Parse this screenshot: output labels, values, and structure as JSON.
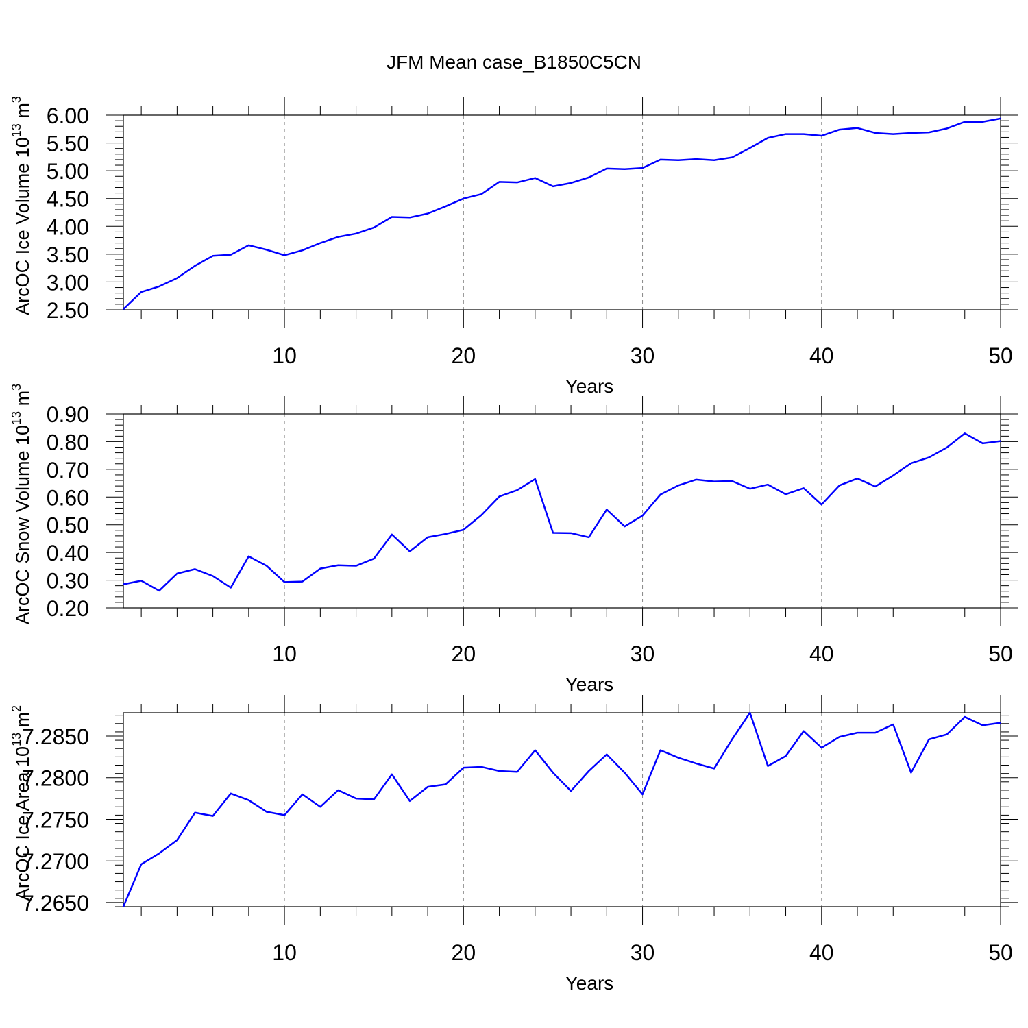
{
  "figure": {
    "title": "JFM Mean case_B1850C5CN"
  },
  "chart_data": [
    {
      "type": "line",
      "xlabel": "Years",
      "ylabel": "ArcOC Ice Volume 10",
      "ylabel_exponent": "13",
      "ylabel_unit": " m",
      "ylabel_unit_exponent": "3",
      "xlim": [
        1,
        50
      ],
      "ylim": [
        2.5,
        6.0
      ],
      "xticks": [
        10,
        20,
        30,
        40,
        50
      ],
      "yticks": [
        "2.50",
        "3.00",
        "3.50",
        "4.00",
        "4.50",
        "5.00",
        "5.50",
        "6.00"
      ],
      "x_grid": [
        10,
        20,
        30,
        40
      ],
      "series": [
        {
          "name": "ArcOC Ice Volume",
          "color": "#0000ff",
          "x": [
            1,
            2,
            3,
            4,
            5,
            6,
            7,
            8,
            9,
            10,
            11,
            12,
            13,
            14,
            15,
            16,
            17,
            18,
            19,
            20,
            21,
            22,
            23,
            24,
            25,
            26,
            27,
            28,
            29,
            30,
            31,
            32,
            33,
            34,
            35,
            36,
            37,
            38,
            39,
            40,
            41,
            42,
            43,
            44,
            45,
            46,
            47,
            48,
            49,
            50
          ],
          "values": [
            2.51,
            2.82,
            2.92,
            3.07,
            3.29,
            3.47,
            3.49,
            3.66,
            3.58,
            3.48,
            3.57,
            3.7,
            3.81,
            3.87,
            3.98,
            4.17,
            4.16,
            4.23,
            4.36,
            4.5,
            4.58,
            4.8,
            4.79,
            4.87,
            4.72,
            4.78,
            4.88,
            5.04,
            5.03,
            5.05,
            5.2,
            5.19,
            5.21,
            5.19,
            5.24,
            5.41,
            5.59,
            5.66,
            5.66,
            5.63,
            5.74,
            5.77,
            5.68,
            5.66,
            5.68,
            5.69,
            5.76,
            5.88,
            5.88,
            5.94
          ]
        }
      ]
    },
    {
      "type": "line",
      "xlabel": "Years",
      "ylabel": "ArcOC Snow Volume 10",
      "ylabel_exponent": "13",
      "ylabel_unit": " m",
      "ylabel_unit_exponent": "3",
      "xlim": [
        1,
        50
      ],
      "ylim": [
        0.2,
        0.9
      ],
      "xticks": [
        10,
        20,
        30,
        40,
        50
      ],
      "yticks": [
        "0.20",
        "0.30",
        "0.40",
        "0.50",
        "0.60",
        "0.70",
        "0.80",
        "0.90"
      ],
      "x_grid": [
        10,
        20,
        30,
        40
      ],
      "series": [
        {
          "name": "ArcOC Snow Volume",
          "color": "#0000ff",
          "x": [
            1,
            2,
            3,
            4,
            5,
            6,
            7,
            8,
            9,
            10,
            11,
            12,
            13,
            14,
            15,
            16,
            17,
            18,
            19,
            20,
            21,
            22,
            23,
            24,
            25,
            26,
            27,
            28,
            29,
            30,
            31,
            32,
            33,
            34,
            35,
            36,
            37,
            38,
            39,
            40,
            41,
            42,
            43,
            44,
            45,
            46,
            47,
            48,
            49,
            50
          ],
          "values": [
            0.285,
            0.298,
            0.262,
            0.324,
            0.34,
            0.315,
            0.273,
            0.386,
            0.352,
            0.293,
            0.295,
            0.342,
            0.354,
            0.352,
            0.378,
            0.465,
            0.404,
            0.455,
            0.467,
            0.482,
            0.535,
            0.602,
            0.625,
            0.665,
            0.471,
            0.47,
            0.455,
            0.555,
            0.494,
            0.533,
            0.609,
            0.642,
            0.663,
            0.656,
            0.658,
            0.63,
            0.645,
            0.61,
            0.632,
            0.573,
            0.642,
            0.667,
            0.638,
            0.678,
            0.722,
            0.743,
            0.779,
            0.83,
            0.794,
            0.802
          ]
        }
      ]
    },
    {
      "type": "line",
      "xlabel": "Years",
      "ylabel": "ArcOC Ice Area 10",
      "ylabel_exponent": "13",
      "ylabel_unit": " m",
      "ylabel_unit_exponent": "2",
      "xlim": [
        1,
        50
      ],
      "ylim": [
        7.2645,
        7.2878
      ],
      "xticks": [
        10,
        20,
        30,
        40,
        50
      ],
      "yticks": [
        "7.2650",
        "7.2700",
        "7.2750",
        "7.2800",
        "7.2850"
      ],
      "x_grid": [
        10,
        20,
        30,
        40
      ],
      "series": [
        {
          "name": "ArcOC Ice Area",
          "color": "#0000ff",
          "x": [
            1,
            2,
            3,
            4,
            5,
            6,
            7,
            8,
            9,
            10,
            11,
            12,
            13,
            14,
            15,
            16,
            17,
            18,
            19,
            20,
            21,
            22,
            23,
            24,
            25,
            26,
            27,
            28,
            29,
            30,
            31,
            32,
            33,
            34,
            35,
            36,
            37,
            38,
            39,
            40,
            41,
            42,
            43,
            44,
            45,
            46,
            47,
            48,
            49,
            50
          ],
          "values": [
            7.2645,
            7.2696,
            7.2709,
            7.2725,
            7.2758,
            7.2754,
            7.2781,
            7.2773,
            7.2759,
            7.2755,
            7.278,
            7.2765,
            7.2785,
            7.2775,
            7.2774,
            7.2804,
            7.2772,
            7.2789,
            7.2792,
            7.2812,
            7.2813,
            7.2808,
            7.2807,
            7.2833,
            7.2806,
            7.2784,
            7.2808,
            7.2828,
            7.2806,
            7.278,
            7.2833,
            7.2824,
            7.2817,
            7.2811,
            7.2846,
            7.2878,
            7.2814,
            7.2826,
            7.2856,
            7.2836,
            7.2849,
            7.2854,
            7.2854,
            7.2864,
            7.2806,
            7.2846,
            7.2852,
            7.2873,
            7.2863,
            7.2866
          ]
        }
      ]
    }
  ]
}
